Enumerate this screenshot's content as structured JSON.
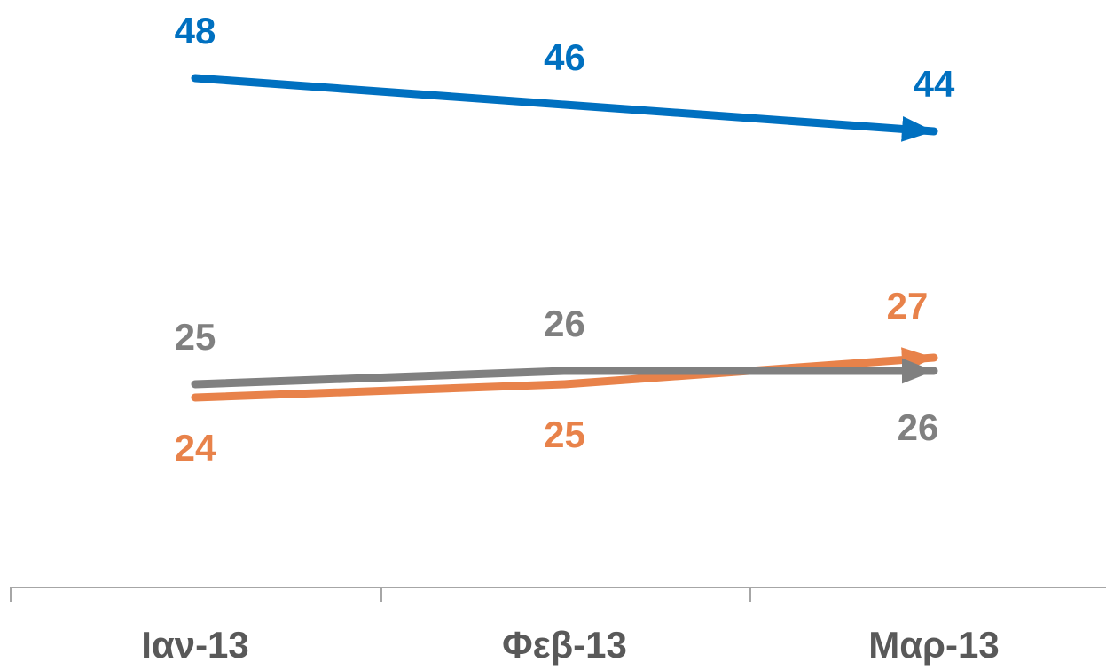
{
  "chart_data": {
    "type": "line",
    "categories": [
      "Ιαν-13",
      "Φεβ-13",
      "Μαρ-13"
    ],
    "series": [
      {
        "color": "#0070c0",
        "values": [
          48,
          46,
          44
        ]
      },
      {
        "color": "#e8824a",
        "values": [
          24,
          25,
          27
        ]
      },
      {
        "color": "#808080",
        "values": [
          25,
          26,
          26
        ]
      }
    ]
  }
}
